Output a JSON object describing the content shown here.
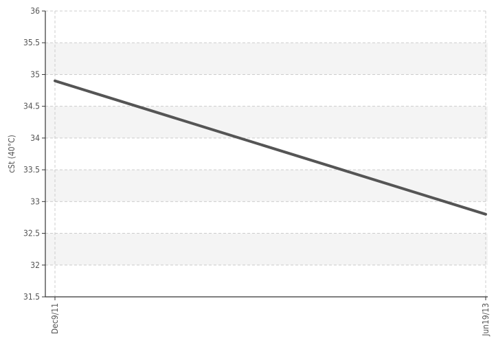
{
  "chart_data": {
    "type": "line",
    "ylabel": "cSt (40°C)",
    "xlabel": "",
    "categories": [
      "Dec9/11",
      "Jun19/13"
    ],
    "series": [
      {
        "values": [
          34.9,
          32.8
        ]
      }
    ],
    "ylim": [
      31.5,
      36
    ],
    "yticks": [
      "31.5",
      "32",
      "32.5",
      "33",
      "33.5",
      "34",
      "34.5",
      "35",
      "35.5",
      "36"
    ],
    "grid": true,
    "colors": {
      "line": "#555555",
      "band": "#f4f4f4",
      "grid": "#cccccc",
      "axis": "#333333",
      "text": "#555555"
    }
  }
}
